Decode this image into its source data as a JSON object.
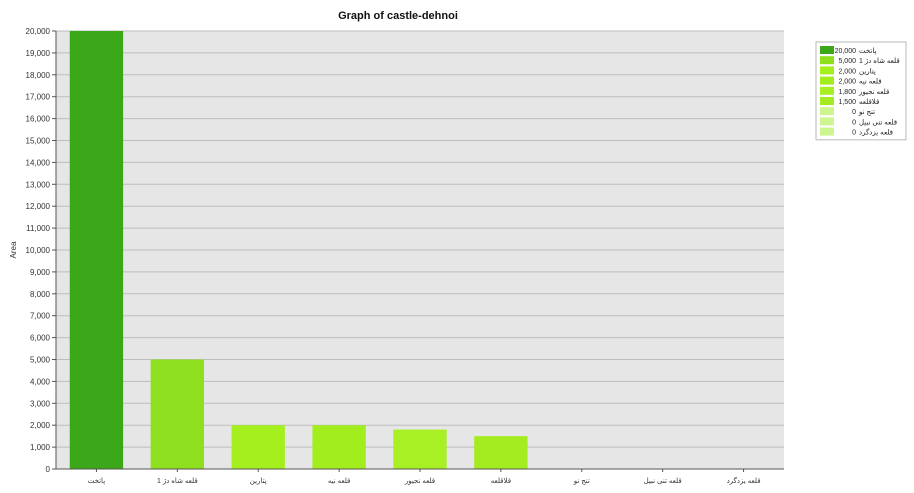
{
  "chart_data": {
    "type": "bar",
    "title": "Graph of castle-dehnoi",
    "ylabel": "Area",
    "xlabel": "",
    "ylim": [
      0,
      20000
    ],
    "yticks": [
      0,
      1000,
      2000,
      3000,
      4000,
      5000,
      6000,
      7000,
      8000,
      9000,
      10000,
      11000,
      12000,
      13000,
      14000,
      15000,
      16000,
      17000,
      18000,
      19000,
      20000
    ],
    "ytick_labels": [
      "0",
      "1,000",
      "2,000",
      "3,000",
      "4,000",
      "5,000",
      "6,000",
      "7,000",
      "8,000",
      "9,000",
      "10,000",
      "11,000",
      "12,000",
      "13,000",
      "14,000",
      "15,000",
      "16,000",
      "17,000",
      "18,000",
      "19,000",
      "20,000"
    ],
    "categories": [
      "پاتخت",
      "قلعه شاه دژ 1",
      "پتارین",
      "قلعه نیه",
      "قلعه نجیور",
      "قلاقلعه",
      "تنج نو",
      "قلعه تنی نبیل",
      "قلعه یزدگرد"
    ],
    "values": [
      20000,
      5000,
      2000,
      2000,
      1800,
      1500,
      0,
      0,
      0
    ],
    "colors": [
      "#3aa818",
      "#8ee01e",
      "#a6ef1e",
      "#a2ed1e",
      "#a8ef24",
      "#a4ec20",
      "#cdf690",
      "#cdf690",
      "#cdf690"
    ],
    "grid": true,
    "legend_position": "right",
    "legend": [
      {
        "label": "پاتخت",
        "value": "20,000",
        "color": "#3aa818"
      },
      {
        "label": "قلعه شاه دژ 1",
        "value": "5,000",
        "color": "#8ee01e"
      },
      {
        "label": "پتارین",
        "value": "2,000",
        "color": "#a6ef1e"
      },
      {
        "label": "قلعه نیه",
        "value": "2,000",
        "color": "#a2ed1e"
      },
      {
        "label": "قلعه نجیور",
        "value": "1,800",
        "color": "#a8ef24"
      },
      {
        "label": "قلاقلعه",
        "value": "1,500",
        "color": "#a4ec20"
      },
      {
        "label": "تنج نو",
        "value": "0",
        "color": "#cdf690"
      },
      {
        "label": "قلعه تنی نبیل",
        "value": "0",
        "color": "#cdf690"
      },
      {
        "label": "قلعه یزدگرد",
        "value": "0",
        "color": "#cdf690"
      }
    ]
  },
  "colors": {
    "plot_background": "#e6e6e6",
    "gridline": "#bdbdbd",
    "axis": "#555555"
  }
}
